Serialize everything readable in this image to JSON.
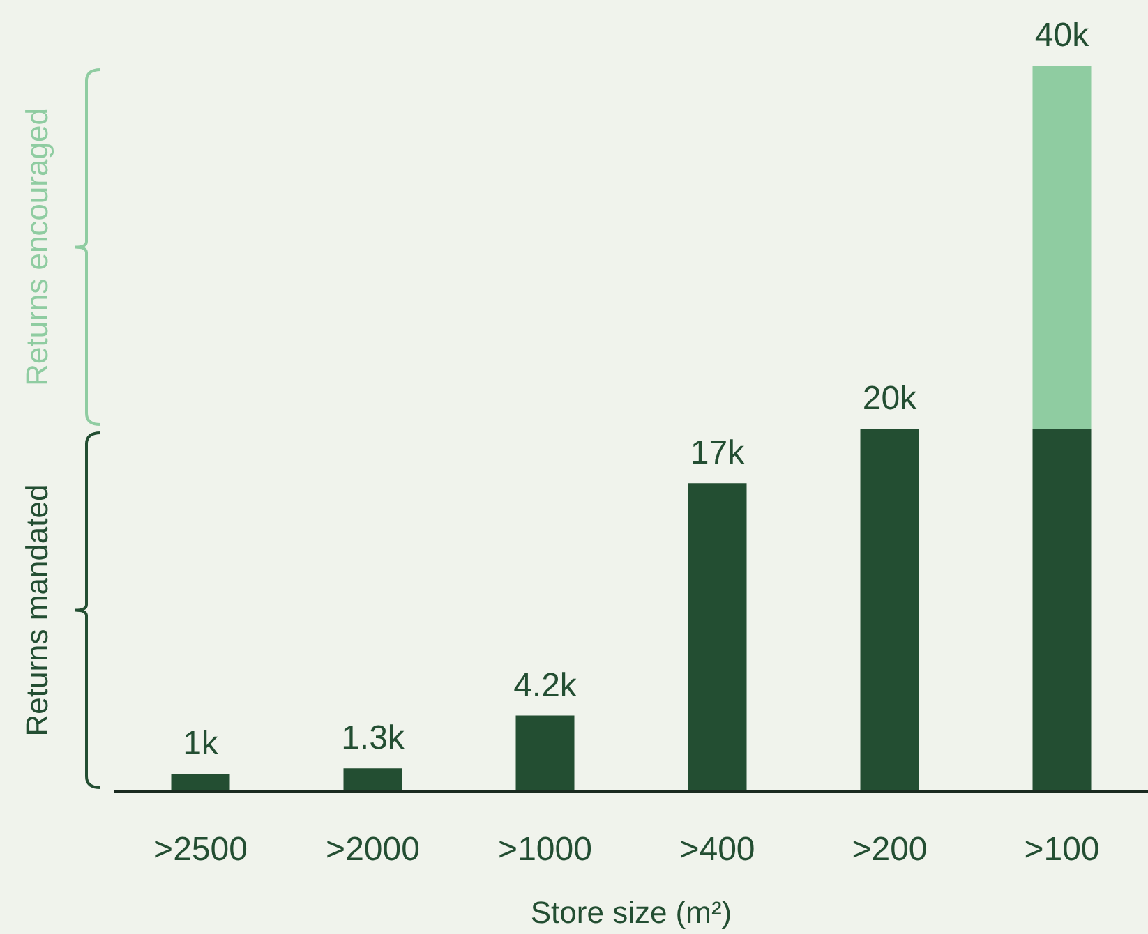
{
  "chart_data": {
    "type": "bar",
    "stacked": true,
    "xlabel": "Store size (m²)",
    "tick_labels": "x",
    "categories": [
      ">2500",
      ">2000",
      ">1000",
      ">400",
      ">200",
      ">100"
    ],
    "series": [
      {
        "color": "#234e32",
        "values": [
          1000,
          1300,
          4200,
          17000,
          20000,
          20000
        ],
        "value_labels": [
          "1k",
          "1.3k",
          "4.2k",
          "17k",
          "20k",
          null
        ]
      },
      {
        "color": "#8fcca1",
        "values": [
          null,
          null,
          null,
          null,
          null,
          20000
        ]
      }
    ],
    "totals": [
      null,
      null,
      null,
      null,
      null,
      "40k"
    ],
    "annotations": [
      "Returns mandated",
      "Returns encouraged"
    ]
  }
}
